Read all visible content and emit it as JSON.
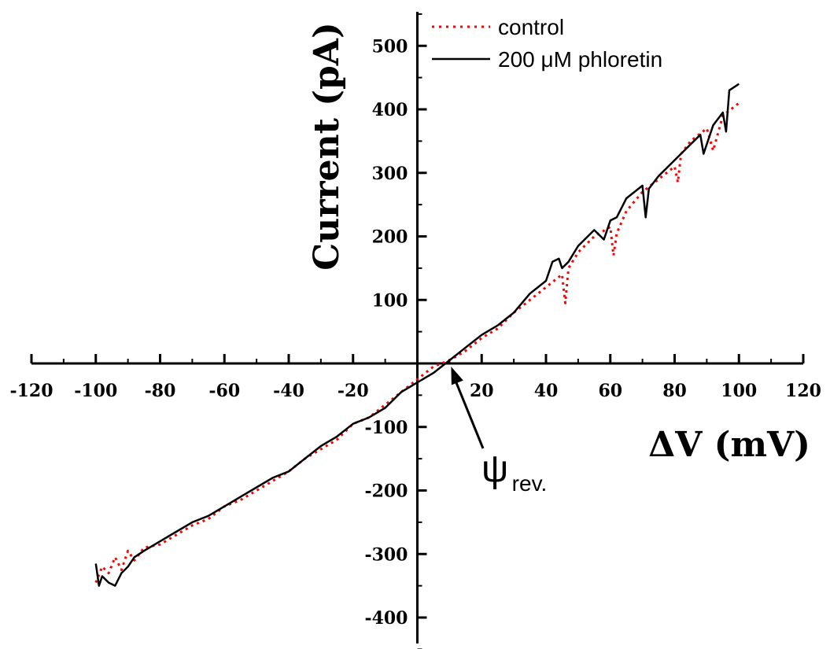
{
  "chart_data": {
    "type": "line",
    "title": "",
    "xlabel": "ΔV (mV)",
    "ylabel": "Current (pA)",
    "xlim": [
      -120,
      120
    ],
    "ylim": [
      -450,
      550
    ],
    "x_ticks": [
      -120,
      -100,
      -80,
      -60,
      -40,
      -20,
      0,
      20,
      40,
      60,
      80,
      100,
      120
    ],
    "x_tick_labels": [
      "-120",
      "-100",
      "-80",
      "-60",
      "-40",
      "-20",
      "",
      "20",
      "40",
      "60",
      "80",
      "100",
      "120"
    ],
    "y_ticks": [
      -400,
      -300,
      -200,
      -100,
      100,
      200,
      300,
      400,
      500
    ],
    "y_tick_labels": [
      "-400",
      "-300",
      "-200",
      "-100",
      "100",
      "200",
      "300",
      "400",
      "500"
    ],
    "grid": false,
    "legend_position": "top-right",
    "colors": {
      "control": "#ff0000",
      "phloretin": "#000000"
    },
    "series": [
      {
        "name": "control",
        "style": "dotted",
        "x": [
          -100,
          -98,
          -96,
          -94,
          -92,
          -90,
          -88,
          -85,
          -80,
          -75,
          -70,
          -65,
          -60,
          -55,
          -50,
          -45,
          -40,
          -35,
          -30,
          -25,
          -20,
          -15,
          -10,
          -5,
          0,
          5,
          10,
          15,
          20,
          25,
          30,
          35,
          40,
          45,
          46,
          47,
          50,
          55,
          60,
          61,
          62,
          65,
          70,
          75,
          80,
          81,
          82,
          85,
          90,
          92,
          95,
          100
        ],
        "y": [
          -345,
          -320,
          -330,
          -305,
          -325,
          -295,
          -310,
          -290,
          -285,
          -270,
          -255,
          -245,
          -225,
          -215,
          -200,
          -185,
          -170,
          -150,
          -135,
          -120,
          -95,
          -85,
          -65,
          -45,
          -25,
          -5,
          5,
          20,
          40,
          55,
          80,
          100,
          120,
          140,
          95,
          150,
          175,
          200,
          215,
          170,
          205,
          240,
          270,
          290,
          310,
          285,
          330,
          350,
          370,
          335,
          390,
          410
        ]
      },
      {
        "name": "200 μM phloretin",
        "style": "solid",
        "x": [
          -100,
          -99,
          -98,
          -96,
          -94,
          -92,
          -90,
          -88,
          -85,
          -80,
          -75,
          -70,
          -65,
          -60,
          -55,
          -50,
          -45,
          -40,
          -35,
          -30,
          -25,
          -20,
          -15,
          -10,
          -5,
          0,
          5,
          10,
          15,
          20,
          25,
          30,
          35,
          40,
          42,
          44,
          45,
          47,
          50,
          55,
          58,
          60,
          62,
          65,
          70,
          71,
          72,
          75,
          80,
          85,
          88,
          89,
          92,
          95,
          96,
          97,
          100
        ],
        "y": [
          -315,
          -350,
          -335,
          -345,
          -350,
          -330,
          -320,
          -305,
          -295,
          -280,
          -265,
          -250,
          -240,
          -225,
          -210,
          -195,
          -180,
          -170,
          -150,
          -130,
          -115,
          -95,
          -85,
          -70,
          -45,
          -30,
          -15,
          5,
          25,
          45,
          60,
          80,
          110,
          130,
          160,
          165,
          150,
          160,
          185,
          210,
          195,
          225,
          230,
          260,
          280,
          230,
          275,
          295,
          320,
          345,
          360,
          330,
          375,
          395,
          365,
          430,
          440
        ]
      }
    ],
    "annotations": [
      {
        "symbol": "ψ",
        "subscript": "rev.",
        "x": 10,
        "y": 0
      }
    ]
  }
}
